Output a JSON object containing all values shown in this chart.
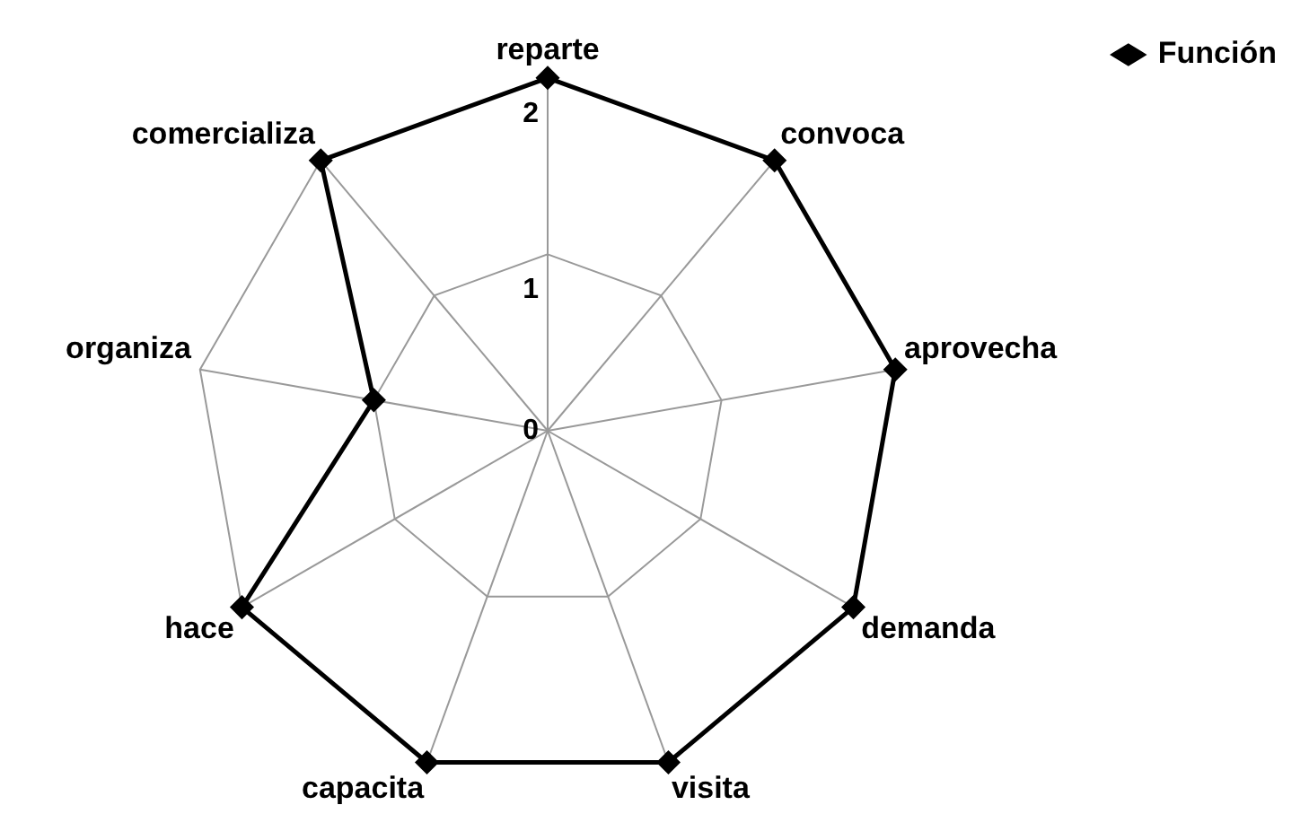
{
  "chart_data": {
    "type": "radar",
    "categories": [
      "reparte",
      "convoca",
      "aprovecha",
      "demanda",
      "visita",
      "capacita",
      "hace",
      "organiza",
      "comercializa"
    ],
    "series": [
      {
        "name": "Función",
        "color": "#000000",
        "values": [
          2,
          2,
          2,
          2,
          2,
          2,
          2,
          1,
          2
        ]
      }
    ],
    "ylim": [
      0,
      2
    ],
    "yticks": [
      0,
      1,
      2
    ],
    "grid": true,
    "legend": "top right",
    "marker": "diamond"
  }
}
